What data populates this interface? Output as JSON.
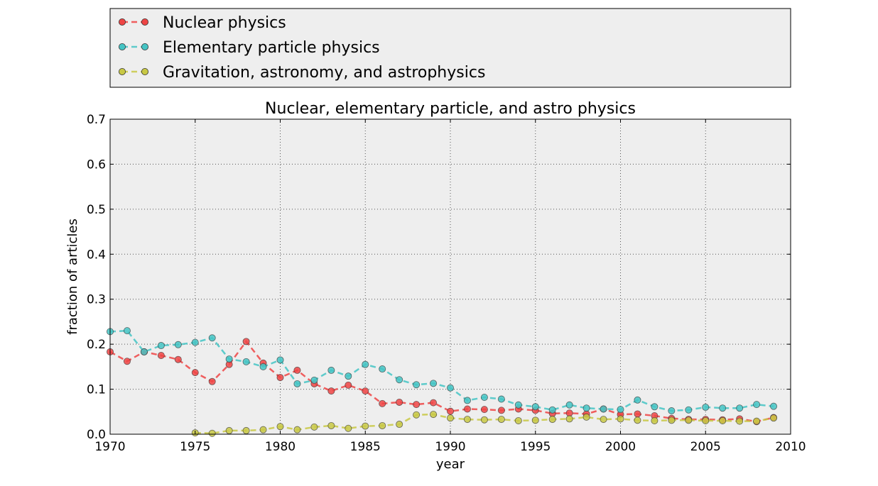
{
  "chart_data": {
    "type": "line",
    "title": "Nuclear, elementary particle, and astro physics",
    "xlabel": "year",
    "ylabel": "fraction of articles",
    "xlim": [
      1970,
      2010
    ],
    "ylim": [
      0.0,
      0.7
    ],
    "xticks": [
      "1970",
      "1975",
      "1980",
      "1985",
      "1990",
      "1995",
      "2000",
      "2005",
      "2010"
    ],
    "yticks": [
      "0.0",
      "0.1",
      "0.2",
      "0.3",
      "0.4",
      "0.5",
      "0.6",
      "0.7"
    ],
    "grid": true,
    "legend_placement": "above plot",
    "colors": {
      "background": "#eeeeee",
      "grid": "#555555"
    },
    "series": [
      {
        "name": "Nuclear physics",
        "color": "#ee4444",
        "x": [
          1970,
          1971,
          1972,
          1973,
          1974,
          1975,
          1976,
          1977,
          1978,
          1979,
          1980,
          1981,
          1982,
          1983,
          1984,
          1985,
          1986,
          1987,
          1988,
          1989,
          1990,
          1991,
          1992,
          1993,
          1994,
          1995,
          1996,
          1997,
          1998,
          1999,
          2000,
          2001,
          2002,
          2003,
          2004,
          2005,
          2006,
          2007,
          2008,
          2009
        ],
        "y": [
          0.183,
          0.162,
          0.183,
          0.175,
          0.166,
          0.137,
          0.117,
          0.155,
          0.206,
          0.158,
          0.126,
          0.142,
          0.112,
          0.096,
          0.109,
          0.096,
          0.068,
          0.071,
          0.066,
          0.07,
          0.051,
          0.056,
          0.055,
          0.053,
          0.056,
          0.053,
          0.046,
          0.047,
          0.045,
          0.056,
          0.044,
          0.045,
          0.041,
          0.035,
          0.033,
          0.033,
          0.032,
          0.034,
          0.028,
          0.037
        ]
      },
      {
        "name": "Elementary particle physics",
        "color": "#44c4c4",
        "x": [
          1970,
          1971,
          1972,
          1973,
          1974,
          1975,
          1976,
          1977,
          1978,
          1979,
          1980,
          1981,
          1982,
          1983,
          1984,
          1985,
          1986,
          1987,
          1988,
          1989,
          1990,
          1991,
          1992,
          1993,
          1994,
          1995,
          1996,
          1997,
          1998,
          1999,
          2000,
          2001,
          2002,
          2003,
          2004,
          2005,
          2006,
          2007,
          2008,
          2009
        ],
        "y": [
          0.228,
          0.23,
          0.183,
          0.197,
          0.199,
          0.204,
          0.214,
          0.167,
          0.161,
          0.15,
          0.165,
          0.112,
          0.12,
          0.142,
          0.129,
          0.155,
          0.145,
          0.121,
          0.11,
          0.113,
          0.103,
          0.075,
          0.082,
          0.078,
          0.065,
          0.061,
          0.054,
          0.065,
          0.058,
          0.056,
          0.055,
          0.076,
          0.061,
          0.052,
          0.054,
          0.06,
          0.058,
          0.058,
          0.066,
          0.062
        ]
      },
      {
        "name": "Gravitation, astronomy, and astrophysics",
        "color": "#c8c844",
        "x": [
          1975,
          1976,
          1977,
          1978,
          1979,
          1980,
          1981,
          1982,
          1983,
          1984,
          1985,
          1986,
          1987,
          1988,
          1989,
          1990,
          1991,
          1992,
          1993,
          1994,
          1995,
          1996,
          1997,
          1998,
          1999,
          2000,
          2001,
          2002,
          2003,
          2004,
          2005,
          2006,
          2007,
          2008,
          2009
        ],
        "y": [
          0.003,
          0.002,
          0.008,
          0.008,
          0.01,
          0.017,
          0.01,
          0.016,
          0.019,
          0.013,
          0.018,
          0.019,
          0.022,
          0.043,
          0.044,
          0.036,
          0.033,
          0.032,
          0.033,
          0.03,
          0.031,
          0.033,
          0.034,
          0.038,
          0.033,
          0.034,
          0.031,
          0.03,
          0.031,
          0.031,
          0.03,
          0.03,
          0.029,
          0.029,
          0.036
        ]
      }
    ]
  }
}
